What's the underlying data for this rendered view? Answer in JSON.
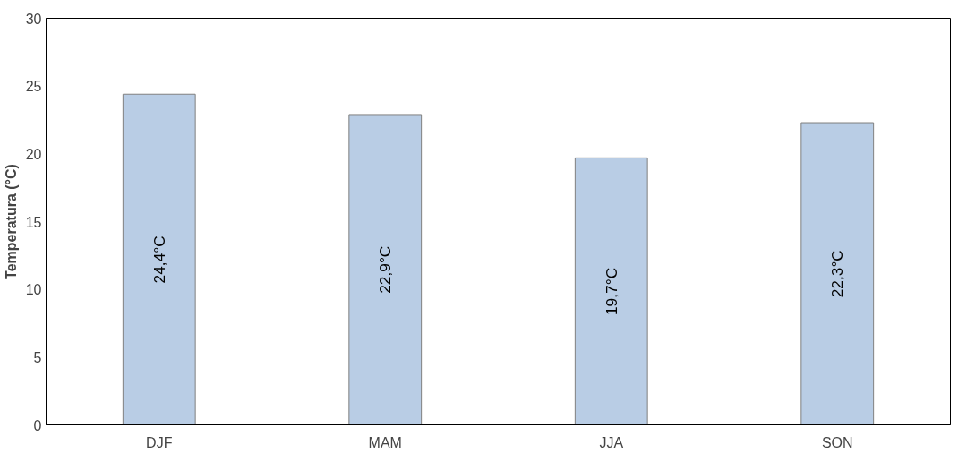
{
  "chart_data": {
    "type": "bar",
    "ylabel": "Temperatura (°C)",
    "categories": [
      "DJF",
      "MAM",
      "JJA",
      "SON"
    ],
    "values": [
      24.4,
      22.9,
      19.7,
      22.3
    ],
    "value_labels": [
      "24,4°C",
      "22,9°C",
      "19,7°C",
      "22,3°C"
    ],
    "color": "#b9cde5",
    "ylim": [
      0,
      30
    ],
    "yticks": [
      0,
      5,
      10,
      15,
      20,
      25,
      30
    ],
    "grid": false
  }
}
